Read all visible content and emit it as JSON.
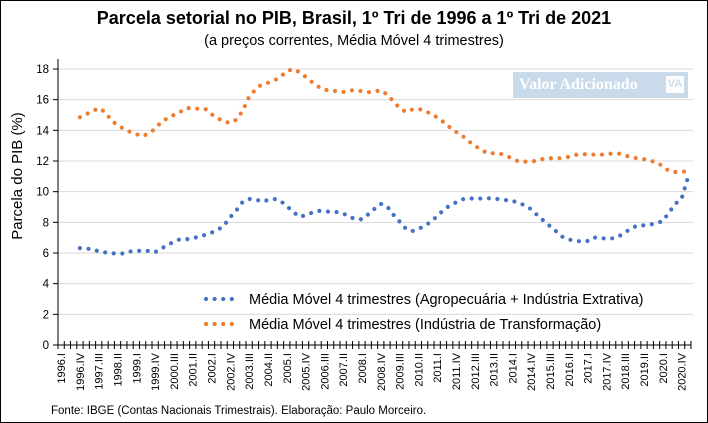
{
  "watermark": {
    "text": "Valor Adicionado",
    "logo": "VA"
  },
  "source": "Fonte: IBGE (Contas Nacionais Trimestrais). Elaboração: Paulo Morceiro.",
  "chart_data": {
    "type": "line",
    "title": "Parcela setorial no PIB, Brasil, 1º Tri de 1996 a 1º Tri de 2021",
    "subtitle": "(a preços correntes, Média Móvel  4 trimestres)",
    "xlabel": "",
    "ylabel": "Parcela  do PIB (%)",
    "ylim": [
      0,
      18
    ],
    "yticks": [
      0,
      2,
      4,
      6,
      8,
      10,
      12,
      14,
      16,
      18
    ],
    "grid": true,
    "legend_position": "bottom-right",
    "x_start": "1996.I",
    "x_end": "2021.I",
    "x_tick_labels": [
      "1996.I",
      "1996.IV",
      "1997.III",
      "1998.II",
      "1999.I",
      "1999.IV",
      "2000.III",
      "2001.II",
      "2002.I",
      "2002.IV",
      "2003.III",
      "2004.II",
      "2005.I",
      "2005.IV",
      "2006.III",
      "2007.II",
      "2008.I",
      "2008.IV",
      "2009.III",
      "2010.II",
      "2011.I",
      "2011.IV",
      "2012.III",
      "2013.II",
      "2014.I",
      "2014.IV",
      "2015.III",
      "2016.II",
      "2017.I",
      "2017.IV",
      "2018.III",
      "2019.II",
      "2020.I",
      "2020.IV"
    ],
    "data_start": "1996.IV",
    "series": [
      {
        "name": "Média Móvel 4 trimestres (Agropecuária + Indústria Extrativa)",
        "color": "#4472c4",
        "values": [
          6.32,
          6.29,
          6.25,
          6.1,
          6.04,
          5.99,
          5.96,
          5.97,
          6.1,
          6.15,
          6.13,
          6.14,
          6.05,
          6.3,
          6.5,
          6.75,
          6.9,
          6.9,
          6.95,
          7.07,
          7.18,
          7.33,
          7.5,
          7.8,
          8.35,
          8.8,
          9.35,
          9.52,
          9.5,
          9.35,
          9.45,
          9.53,
          9.4,
          9.05,
          8.7,
          8.37,
          8.45,
          8.62,
          8.75,
          8.72,
          8.69,
          8.67,
          8.58,
          8.35,
          8.22,
          8.2,
          8.52,
          8.88,
          9.2,
          9.05,
          8.5,
          8.05,
          7.6,
          7.42,
          7.58,
          7.75,
          8.05,
          8.4,
          8.8,
          9.1,
          9.3,
          9.5,
          9.55,
          9.56,
          9.55,
          9.57,
          9.56,
          9.5,
          9.45,
          9.4,
          9.28,
          9.1,
          8.85,
          8.45,
          8.1,
          7.75,
          7.4,
          7.05,
          6.88,
          6.8,
          6.75,
          6.78,
          7.02,
          6.96,
          6.95,
          6.96,
          7.08,
          7.35,
          7.62,
          7.8,
          7.8,
          7.85,
          7.95,
          8.08,
          8.65,
          9.2,
          9.55,
          10.9
        ]
      },
      {
        "name": "Média Móvel 4 trimestres (Indústria de Transformação)",
        "color": "#ed7d31",
        "values": [
          14.85,
          15.05,
          15.25,
          15.45,
          15.2,
          14.65,
          14.35,
          14.1,
          13.9,
          13.75,
          13.62,
          13.8,
          14.1,
          14.55,
          14.8,
          15.0,
          15.2,
          15.45,
          15.45,
          15.4,
          15.4,
          15.05,
          14.8,
          14.55,
          14.5,
          14.7,
          15.3,
          16.2,
          16.65,
          17.0,
          17.1,
          17.25,
          17.5,
          17.85,
          18.0,
          17.8,
          17.5,
          17.15,
          16.85,
          16.65,
          16.6,
          16.55,
          16.5,
          16.6,
          16.62,
          16.55,
          16.48,
          16.55,
          16.6,
          16.35,
          15.9,
          15.45,
          15.2,
          15.35,
          15.4,
          15.3,
          15.05,
          14.85,
          14.55,
          14.2,
          13.9,
          13.65,
          13.3,
          13.0,
          12.75,
          12.5,
          12.5,
          12.48,
          12.35,
          12.15,
          11.97,
          11.96,
          11.96,
          12.03,
          12.15,
          12.18,
          12.16,
          12.2,
          12.27,
          12.4,
          12.45,
          12.43,
          12.42,
          12.4,
          12.45,
          12.48,
          12.48,
          12.35,
          12.25,
          12.17,
          12.12,
          12.0,
          11.93,
          11.65,
          11.35,
          11.28,
          11.32,
          11.29
        ]
      }
    ]
  }
}
